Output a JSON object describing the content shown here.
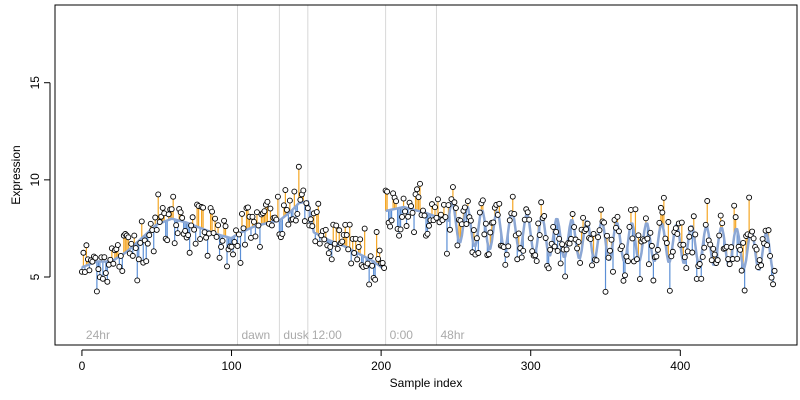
{
  "chart_data": {
    "type": "scatter",
    "title": "",
    "xlabel": "Sample index",
    "ylabel": "Expression",
    "xlim": [
      -18,
      478
    ],
    "ylim": [
      1.5,
      19
    ],
    "xticks": [
      0,
      100,
      200,
      300,
      400
    ],
    "yticks": [
      5,
      10,
      15
    ],
    "grid": false,
    "legend": "none",
    "colors": {
      "fit": "#8ca7d4",
      "residual_pos": "#f5a623",
      "residual_neg": "#5b8fd6",
      "point_fill": "#ffffff",
      "point_stroke": "#000000",
      "phase_line": "#d8d8d8",
      "phase_label": "#aaaaaa"
    },
    "phase_markers": [
      {
        "x": 0,
        "label": "24hr"
      },
      {
        "x": 104,
        "label": "dawn"
      },
      {
        "x": 132,
        "label": "dusk"
      },
      {
        "x": 151,
        "label": "12:00"
      },
      {
        "x": 203,
        "label": "0:00"
      },
      {
        "x": 237,
        "label": "48hr"
      }
    ],
    "fit_anchors": [
      [
        0,
        5.5
      ],
      [
        10,
        5.8
      ],
      [
        20,
        5.8
      ],
      [
        30,
        6.3
      ],
      [
        40,
        7.0
      ],
      [
        50,
        7.7
      ],
      [
        60,
        8.0
      ],
      [
        70,
        7.8
      ],
      [
        80,
        7.5
      ],
      [
        90,
        7.2
      ],
      [
        100,
        7.0
      ],
      [
        104,
        7.2
      ],
      [
        115,
        7.6
      ],
      [
        125,
        7.8
      ],
      [
        132,
        7.9
      ],
      [
        140,
        8.4
      ],
      [
        145,
        8.8
      ],
      [
        151,
        8.9
      ],
      [
        155,
        7.3
      ],
      [
        165,
        6.9
      ],
      [
        175,
        6.6
      ],
      [
        185,
        6.2
      ],
      [
        195,
        5.8
      ],
      [
        202,
        5.4
      ],
      [
        203,
        8.4
      ],
      [
        215,
        8.6
      ],
      [
        230,
        8.3
      ],
      [
        240,
        8.0
      ],
      [
        255,
        7.7
      ],
      [
        270,
        7.4
      ],
      [
        285,
        7.4
      ],
      [
        300,
        7.2
      ],
      [
        320,
        7.0
      ],
      [
        340,
        6.9
      ],
      [
        360,
        6.8
      ],
      [
        380,
        6.8
      ],
      [
        400,
        6.7
      ],
      [
        420,
        6.6
      ],
      [
        440,
        6.5
      ],
      [
        463,
        6.2
      ]
    ],
    "oscillation": {
      "start": 245,
      "amplitude": 1.0,
      "period": 10
    },
    "sample_count": 464,
    "noise_sd": 0.75,
    "seed": 12345
  }
}
